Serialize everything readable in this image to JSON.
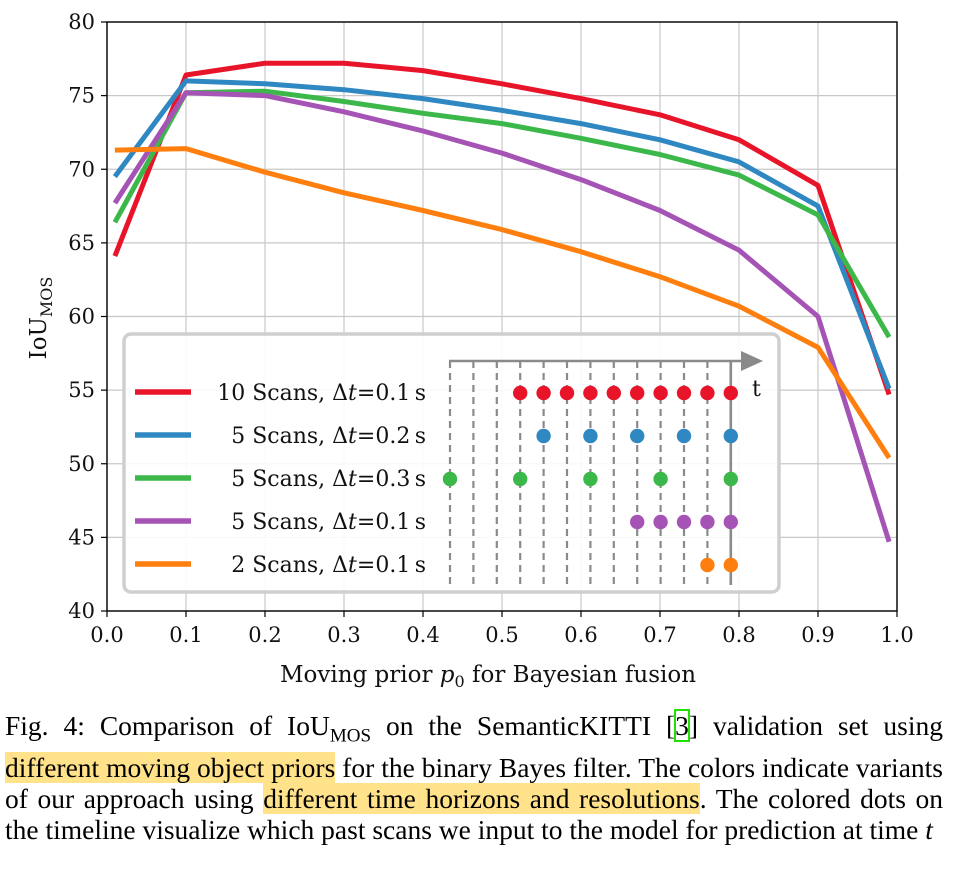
{
  "chart_data": {
    "type": "line",
    "xlabel_prefix": "Moving prior ",
    "xlabel_var": "p",
    "xlabel_sub": "0",
    "xlabel_suffix": " for Bayesian fusion",
    "ylabel_main": "IoU",
    "ylabel_sub": "MOS",
    "xlim": [
      0.0,
      1.0
    ],
    "ylim": [
      40,
      80
    ],
    "xticks": [
      "0.0",
      "0.1",
      "0.2",
      "0.3",
      "0.4",
      "0.5",
      "0.6",
      "0.7",
      "0.8",
      "0.9",
      "1.0"
    ],
    "yticks": [
      "40",
      "45",
      "50",
      "55",
      "60",
      "65",
      "70",
      "75",
      "80"
    ],
    "grid": true,
    "legend_position": "lower-left",
    "x": [
      0.01,
      0.1,
      0.2,
      0.3,
      0.4,
      0.5,
      0.6,
      0.7,
      0.8,
      0.9,
      0.99
    ],
    "series": [
      {
        "name": "10 Scans, Δt=0.1 s",
        "legend_pre": "10 Scans, ",
        "legend_val": "=0.1 s",
        "color": "#e8152a",
        "values": [
          64.1,
          76.4,
          77.2,
          77.2,
          76.7,
          75.8,
          74.8,
          73.7,
          72.0,
          68.9,
          54.7
        ],
        "timeline_dots": [
          1,
          2,
          3,
          4,
          5,
          6,
          7,
          8,
          9,
          10
        ]
      },
      {
        "name": "5 Scans, Δt=0.2 s",
        "legend_pre": "5 Scans, ",
        "legend_val": "=0.2 s",
        "color": "#2f88c2",
        "values": [
          69.5,
          76.0,
          75.8,
          75.4,
          74.8,
          74.0,
          73.1,
          72.0,
          70.5,
          67.5,
          55.1
        ],
        "timeline_dots": [
          2,
          4,
          6,
          8,
          10
        ]
      },
      {
        "name": "5 Scans, Δt=0.3 s",
        "legend_pre": "5 Scans, ",
        "legend_val": "=0.3 s",
        "color": "#3cb84a",
        "values": [
          66.4,
          75.2,
          75.3,
          74.6,
          73.8,
          73.1,
          72.1,
          71.0,
          69.6,
          66.9,
          58.6
        ],
        "timeline_dots": [
          -2,
          1,
          4,
          7,
          10
        ]
      },
      {
        "name": "5 Scans, Δt=0.1 s",
        "legend_pre": "5 Scans, ",
        "legend_val": "=0.1 s",
        "color": "#a554b5",
        "values": [
          67.7,
          75.2,
          75.0,
          73.9,
          72.6,
          71.1,
          69.3,
          67.2,
          64.5,
          60.0,
          44.7
        ],
        "timeline_dots": [
          6,
          7,
          8,
          9,
          10
        ]
      },
      {
        "name": "2 Scans, Δt=0.1 s",
        "legend_pre": "2 Scans, ",
        "legend_val": "=0.1 s",
        "color": "#ff7f0e",
        "values": [
          71.3,
          71.4,
          69.8,
          68.4,
          67.2,
          65.9,
          64.4,
          62.7,
          60.7,
          57.9,
          50.4
        ],
        "timeline_dots": [
          9,
          10
        ]
      }
    ],
    "timeline_label": "t"
  },
  "caption": {
    "fig": "Fig. 4: Comparison of IoU",
    "fig_sub": "MOS",
    "part1": " on the SemanticKITTI [",
    "cite": "3",
    "part2": "] validation set using ",
    "hl1": "different moving object priors",
    "part3": " for the binary Bayes filter. The colors indicate variants of our approach using ",
    "hl2": "different time horizons and resolutions",
    "part4": ". The colored dots on the timeline visualize which past scans we input to the model for prediction at time ",
    "t": "t"
  }
}
